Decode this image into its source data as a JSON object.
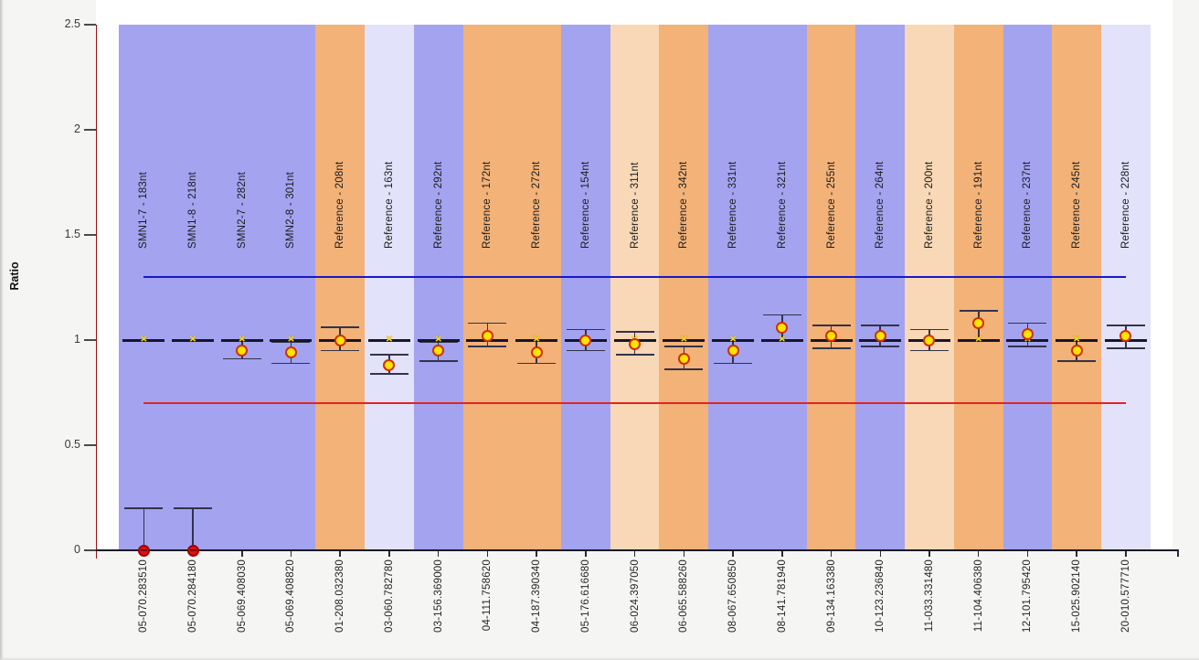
{
  "chart_data": {
    "type": "scatter",
    "title": "",
    "xlabel": "",
    "ylabel": "Ratio",
    "ylim": [
      0,
      2.5
    ],
    "yticks": [
      0,
      0.5,
      1,
      1.5,
      2,
      2.5
    ],
    "ytick_labels": [
      "0",
      "0.5",
      "1",
      "1.5",
      "2",
      "2.5"
    ],
    "grid": "off",
    "legend": "none",
    "plot_bg": "#ffffff",
    "band_colors": {
      "blue": "#a3a3f0",
      "orange": "#f2b278",
      "peach": "#f8d8b6",
      "lavender": "#e2e2fa"
    },
    "threshold_lines": [
      {
        "name": "upper-threshold",
        "value": 1.3,
        "color": "#1818c8"
      },
      {
        "name": "lower-threshold",
        "value": 0.7,
        "color": "#e22424"
      }
    ],
    "reference_marker": {
      "value": 1.0,
      "symbol": "yellow-x-on-black-dash"
    },
    "marker_colors": {
      "point_fill": "#ffe400",
      "point_ring": "#d03000",
      "deleted_fill": "#e01212",
      "deleted_ring": "#a00000",
      "x_glyph": "#ffe400",
      "error_bar": "#33334a",
      "ref_dash": "#16162c"
    },
    "probes": [
      {
        "axis_label": "05-070.283510",
        "band_label": "SMN1-7 - 183nt",
        "band": "blue",
        "marker": "deleted",
        "ratio": 0.0,
        "hi": 0.2,
        "lo": 0.0
      },
      {
        "axis_label": "05-070.284180",
        "band_label": "SMN1-8 - 218nt",
        "band": "blue",
        "marker": "deleted",
        "ratio": 0.0,
        "hi": 0.2,
        "lo": 0.0
      },
      {
        "axis_label": "05-069.408030",
        "band_label": "SMN2-7 - 282nt",
        "band": "blue",
        "marker": "normal",
        "ratio": 0.95,
        "hi": 1.0,
        "lo": 0.91
      },
      {
        "axis_label": "05-069.408820",
        "band_label": "SMN2-8 - 301nt",
        "band": "blue",
        "marker": "normal",
        "ratio": 0.94,
        "hi": 0.99,
        "lo": 0.89
      },
      {
        "axis_label": "01-208.032380",
        "band_label": "Reference - 208nt",
        "band": "orange",
        "marker": "normal",
        "ratio": 1.0,
        "hi": 1.06,
        "lo": 0.95
      },
      {
        "axis_label": "03-060.782780",
        "band_label": "Reference - 163nt",
        "band": "lavender",
        "marker": "normal",
        "ratio": 0.88,
        "hi": 0.93,
        "lo": 0.84
      },
      {
        "axis_label": "03-156.369000",
        "band_label": "Reference - 292nt",
        "band": "blue",
        "marker": "normal",
        "ratio": 0.95,
        "hi": 0.99,
        "lo": 0.9
      },
      {
        "axis_label": "04-111.758620",
        "band_label": "Reference - 172nt",
        "band": "orange",
        "marker": "normal",
        "ratio": 1.02,
        "hi": 1.08,
        "lo": 0.97
      },
      {
        "axis_label": "04-187.390340",
        "band_label": "Reference - 272nt",
        "band": "orange",
        "marker": "normal",
        "ratio": 0.94,
        "hi": 1.0,
        "lo": 0.89
      },
      {
        "axis_label": "05-176.616680",
        "band_label": "Reference - 154nt",
        "band": "blue",
        "marker": "normal",
        "ratio": 1.0,
        "hi": 1.05,
        "lo": 0.95
      },
      {
        "axis_label": "06-024.397050",
        "band_label": "Reference - 311nt",
        "band": "peach",
        "marker": "normal",
        "ratio": 0.98,
        "hi": 1.04,
        "lo": 0.93
      },
      {
        "axis_label": "06-065.588260",
        "band_label": "Reference - 342nt",
        "band": "orange",
        "marker": "normal",
        "ratio": 0.91,
        "hi": 0.97,
        "lo": 0.86
      },
      {
        "axis_label": "08-067.650850",
        "band_label": "Reference - 331nt",
        "band": "blue",
        "marker": "normal",
        "ratio": 0.95,
        "hi": 1.0,
        "lo": 0.89
      },
      {
        "axis_label": "08-141.781940",
        "band_label": "Reference - 321nt",
        "band": "blue",
        "marker": "normal",
        "ratio": 1.06,
        "hi": 1.12,
        "lo": 1.0
      },
      {
        "axis_label": "09-134.163380",
        "band_label": "Reference - 255nt",
        "band": "orange",
        "marker": "normal",
        "ratio": 1.02,
        "hi": 1.07,
        "lo": 0.96
      },
      {
        "axis_label": "10-123.236840",
        "band_label": "Reference - 264nt",
        "band": "blue",
        "marker": "normal",
        "ratio": 1.02,
        "hi": 1.07,
        "lo": 0.97
      },
      {
        "axis_label": "11-033.331480",
        "band_label": "Reference - 200nt",
        "band": "peach",
        "marker": "normal",
        "ratio": 1.0,
        "hi": 1.05,
        "lo": 0.95
      },
      {
        "axis_label": "11-104.406380",
        "band_label": "Reference - 191nt",
        "band": "orange",
        "marker": "normal",
        "ratio": 1.08,
        "hi": 1.14,
        "lo": 1.0
      },
      {
        "axis_label": "12-101.795420",
        "band_label": "Reference - 237nt",
        "band": "blue",
        "marker": "normal",
        "ratio": 1.03,
        "hi": 1.08,
        "lo": 0.97
      },
      {
        "axis_label": "15-025.902140",
        "band_label": "Reference - 245nt",
        "band": "orange",
        "marker": "normal",
        "ratio": 0.95,
        "hi": 1.0,
        "lo": 0.9
      },
      {
        "axis_label": "20-010.577710",
        "band_label": "Reference - 228nt",
        "band": "lavender",
        "marker": "normal",
        "ratio": 1.02,
        "hi": 1.07,
        "lo": 0.96
      }
    ]
  }
}
